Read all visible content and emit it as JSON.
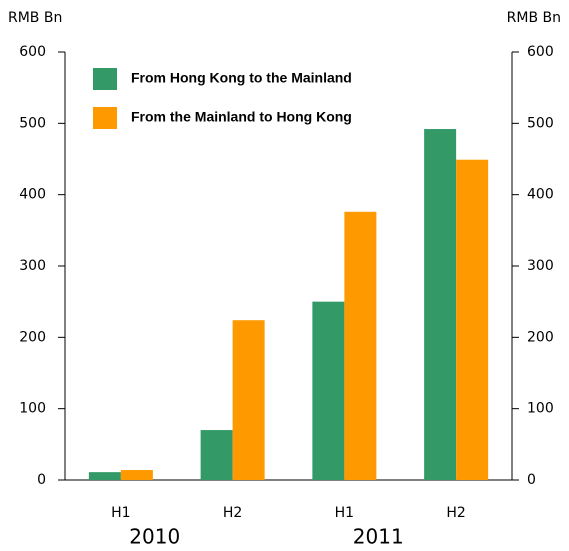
{
  "chart_data": {
    "type": "bar",
    "ylabel": "RMB Bn",
    "y2label": "RMB Bn",
    "categories": [
      "H1",
      "H2",
      "H1",
      "H2"
    ],
    "groups": [
      "2010",
      "2011"
    ],
    "series": [
      {
        "name": "From Hong Kong to the Mainland",
        "color": "#339966",
        "values": [
          11,
          70,
          250,
          492
        ]
      },
      {
        "name": "From the Mainland to Hong Kong",
        "color": "#ff9900",
        "values": [
          14,
          224,
          376,
          449
        ]
      }
    ],
    "ylim": [
      0,
      600
    ],
    "yticks": [
      0,
      100,
      200,
      300,
      400,
      500,
      600
    ],
    "y2lim": [
      0,
      600
    ],
    "y2ticks": [
      0,
      100,
      200,
      300,
      400,
      500,
      600
    ],
    "legend": "upper left"
  }
}
